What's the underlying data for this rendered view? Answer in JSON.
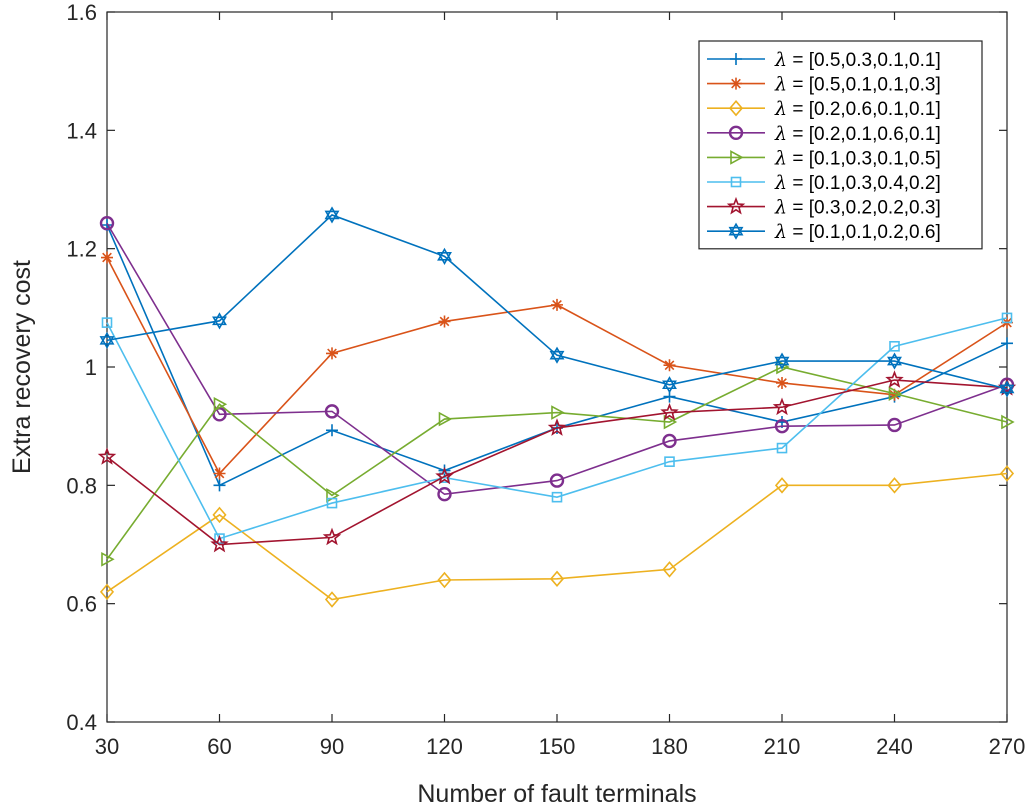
{
  "chart_data": {
    "type": "line",
    "xlabel": "Number of fault terminals",
    "ylabel": "Extra recovery cost",
    "x": [
      30,
      60,
      90,
      120,
      150,
      180,
      210,
      240,
      270
    ],
    "xticks": [
      "30",
      "60",
      "90",
      "120",
      "150",
      "180",
      "210",
      "240",
      "270"
    ],
    "yticks": [
      "0.4",
      "0.6",
      "0.8",
      "1",
      "1.2",
      "1.4",
      "1.6"
    ],
    "xlim": [
      30,
      270
    ],
    "ylim": [
      0.4,
      1.6
    ],
    "grid": false,
    "legend_position": "top-right",
    "series": [
      {
        "name": "[0.5,0.3,0.1,0.1]",
        "color": "#0072BD",
        "marker": "plus",
        "values": [
          1.24,
          0.8,
          0.893,
          0.825,
          0.897,
          0.95,
          0.907,
          0.95,
          1.04
        ]
      },
      {
        "name": "[0.5,0.1,0.1,0.3]",
        "color": "#D95319",
        "marker": "asterisk",
        "values": [
          1.185,
          0.82,
          1.023,
          1.077,
          1.105,
          1.003,
          0.973,
          0.953,
          1.075
        ]
      },
      {
        "name": "[0.2,0.6,0.1,0.1]",
        "color": "#EDB120",
        "marker": "diamond",
        "values": [
          0.62,
          0.75,
          0.607,
          0.64,
          0.642,
          0.658,
          0.8,
          0.8,
          0.82
        ]
      },
      {
        "name": "[0.2,0.1,0.6,0.1]",
        "color": "#7E2F8E",
        "marker": "circle",
        "values": [
          1.243,
          0.92,
          0.925,
          0.785,
          0.808,
          0.875,
          0.9,
          0.902,
          0.97
        ]
      },
      {
        "name": "[0.1,0.3,0.1,0.5]",
        "color": "#77AC30",
        "marker": "triangle-right",
        "values": [
          0.675,
          0.937,
          0.783,
          0.912,
          0.923,
          0.907,
          1.0,
          0.955,
          0.907
        ]
      },
      {
        "name": "[0.1,0.3,0.4,0.2]",
        "color": "#4DBEEE",
        "marker": "square",
        "values": [
          1.075,
          0.71,
          0.77,
          0.813,
          0.78,
          0.84,
          0.863,
          1.035,
          1.083
        ]
      },
      {
        "name": "[0.3,0.2,0.2,0.3]",
        "color": "#A2142F",
        "marker": "pentagram",
        "values": [
          0.848,
          0.7,
          0.712,
          0.815,
          0.897,
          0.923,
          0.932,
          0.978,
          0.965
        ]
      },
      {
        "name": "[0.1,0.1,0.2,0.6]",
        "color": "#0072BD",
        "marker": "hexagram",
        "values": [
          1.045,
          1.078,
          1.257,
          1.187,
          1.02,
          0.97,
          1.01,
          1.01,
          0.963
        ]
      }
    ]
  },
  "legend": {
    "lambda_symbol": "λ",
    "equals": " = "
  }
}
